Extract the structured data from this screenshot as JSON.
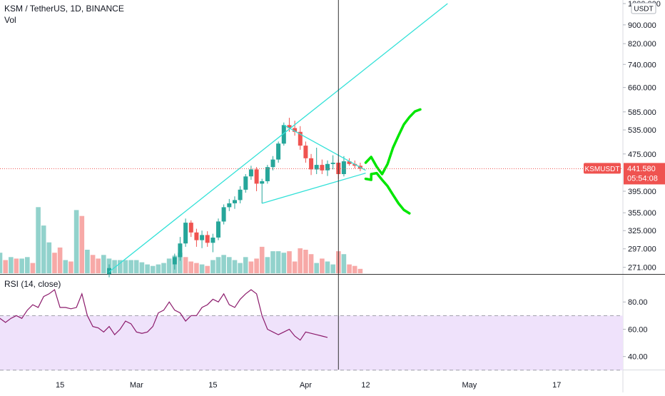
{
  "header": {
    "symbol_title": "KSM / TetherUS, 1D, BINANCE",
    "volume_label": "Vol",
    "currency_badge": "USDT"
  },
  "price_axis": {
    "ticks": [
      "1000.000",
      "900.000",
      "820.000",
      "740.000",
      "660.000",
      "585.000",
      "535.000",
      "475.000",
      "395.000",
      "355.000",
      "325.000",
      "297.000",
      "271.000"
    ]
  },
  "last_price": {
    "symbol": "KSMUSDT",
    "price": "441.580",
    "countdown": "05:54:08",
    "value": 441.58
  },
  "rsi": {
    "label": "RSI (14, close)",
    "ticks": [
      "80.00",
      "60.00",
      "40.00"
    ],
    "band_upper": 70,
    "band_lower": 30
  },
  "time_axis": {
    "ticks": [
      "15",
      "Mar",
      "15",
      "Apr",
      "12",
      "May",
      "17"
    ]
  },
  "colors": {
    "up": "#26a69a",
    "down": "#ef5350",
    "trendline": "#33e1d8",
    "drawing": "#00e600",
    "rsi_line": "#8b1a6b",
    "rsi_band": "#efe2fb",
    "crosshair": "#333333"
  },
  "chart_data": {
    "type": "candlestick",
    "title": "KSM / TetherUS, 1D, BINANCE",
    "price_scale": "log",
    "price_range": [
      265,
      1000
    ],
    "candles": [
      {
        "date": "2021-02-24",
        "o": 262,
        "h": 275,
        "l": 258,
        "c": 270
      },
      {
        "date": "2021-03-08",
        "o": 275,
        "h": 290,
        "l": 268,
        "c": 285
      },
      {
        "date": "2021-03-09",
        "o": 285,
        "h": 315,
        "l": 280,
        "c": 305
      },
      {
        "date": "2021-03-10",
        "o": 305,
        "h": 345,
        "l": 300,
        "c": 338
      },
      {
        "date": "2021-03-11",
        "o": 338,
        "h": 342,
        "l": 315,
        "c": 322
      },
      {
        "date": "2021-03-12",
        "o": 322,
        "h": 328,
        "l": 300,
        "c": 310
      },
      {
        "date": "2021-03-13",
        "o": 310,
        "h": 325,
        "l": 298,
        "c": 318
      },
      {
        "date": "2021-03-14",
        "o": 318,
        "h": 324,
        "l": 300,
        "c": 306
      },
      {
        "date": "2021-03-15",
        "o": 306,
        "h": 320,
        "l": 292,
        "c": 314
      },
      {
        "date": "2021-03-16",
        "o": 314,
        "h": 345,
        "l": 310,
        "c": 340
      },
      {
        "date": "2021-03-17",
        "o": 340,
        "h": 370,
        "l": 335,
        "c": 365
      },
      {
        "date": "2021-03-18",
        "o": 365,
        "h": 380,
        "l": 358,
        "c": 372
      },
      {
        "date": "2021-03-19",
        "o": 372,
        "h": 385,
        "l": 362,
        "c": 378
      },
      {
        "date": "2021-03-20",
        "o": 378,
        "h": 405,
        "l": 372,
        "c": 398
      },
      {
        "date": "2021-03-21",
        "o": 398,
        "h": 430,
        "l": 392,
        "c": 425
      },
      {
        "date": "2021-03-22",
        "o": 425,
        "h": 448,
        "l": 418,
        "c": 440
      },
      {
        "date": "2021-03-23",
        "o": 440,
        "h": 445,
        "l": 395,
        "c": 410
      },
      {
        "date": "2021-03-24",
        "o": 410,
        "h": 420,
        "l": 372,
        "c": 415
      },
      {
        "date": "2021-03-25",
        "o": 415,
        "h": 450,
        "l": 410,
        "c": 445
      },
      {
        "date": "2021-03-26",
        "o": 445,
        "h": 470,
        "l": 438,
        "c": 462
      },
      {
        "date": "2021-03-27",
        "o": 462,
        "h": 505,
        "l": 455,
        "c": 500
      },
      {
        "date": "2021-03-28",
        "o": 500,
        "h": 555,
        "l": 495,
        "c": 548
      },
      {
        "date": "2021-03-29",
        "o": 548,
        "h": 568,
        "l": 530,
        "c": 540
      },
      {
        "date": "2021-03-30",
        "o": 540,
        "h": 560,
        "l": 520,
        "c": 530
      },
      {
        "date": "2021-03-31",
        "o": 530,
        "h": 545,
        "l": 485,
        "c": 495
      },
      {
        "date": "2021-04-01",
        "o": 495,
        "h": 505,
        "l": 455,
        "c": 465
      },
      {
        "date": "2021-04-02",
        "o": 465,
        "h": 475,
        "l": 428,
        "c": 440
      },
      {
        "date": "2021-04-03",
        "o": 440,
        "h": 490,
        "l": 430,
        "c": 450
      },
      {
        "date": "2021-04-04",
        "o": 450,
        "h": 462,
        "l": 430,
        "c": 438
      },
      {
        "date": "2021-04-05",
        "o": 438,
        "h": 460,
        "l": 426,
        "c": 452
      },
      {
        "date": "2021-04-06",
        "o": 452,
        "h": 472,
        "l": 440,
        "c": 455
      },
      {
        "date": "2021-04-07",
        "o": 455,
        "h": 462,
        "l": 420,
        "c": 430
      },
      {
        "date": "2021-04-08",
        "o": 430,
        "h": 470,
        "l": 425,
        "c": 458
      },
      {
        "date": "2021-04-09",
        "o": 458,
        "h": 465,
        "l": 448,
        "c": 452
      },
      {
        "date": "2021-04-10",
        "o": 452,
        "h": 460,
        "l": 442,
        "c": 448
      },
      {
        "date": "2021-04-11",
        "o": 448,
        "h": 455,
        "l": 436,
        "c": 441.58
      }
    ],
    "volume": [
      {
        "date": "2021-01-31",
        "v": 30,
        "up": false
      },
      {
        "date": "2021-02-01",
        "v": 30,
        "up": false
      },
      {
        "date": "2021-02-02",
        "v": 22,
        "up": true
      },
      {
        "date": "2021-02-03",
        "v": 20,
        "up": false
      },
      {
        "date": "2021-02-04",
        "v": 28,
        "up": true
      },
      {
        "date": "2021-02-05",
        "v": 18,
        "up": false
      },
      {
        "date": "2021-02-06",
        "v": 22,
        "up": true
      },
      {
        "date": "2021-02-07",
        "v": 20,
        "up": false
      },
      {
        "date": "2021-02-08",
        "v": 20,
        "up": true
      },
      {
        "date": "2021-02-09",
        "v": 22,
        "up": true
      },
      {
        "date": "2021-02-10",
        "v": 14,
        "up": false
      },
      {
        "date": "2021-02-11",
        "v": 90,
        "up": true
      },
      {
        "date": "2021-02-12",
        "v": 65,
        "up": true
      },
      {
        "date": "2021-02-13",
        "v": 42,
        "up": true
      },
      {
        "date": "2021-02-14",
        "v": 28,
        "up": false
      },
      {
        "date": "2021-02-15",
        "v": 35,
        "up": false
      },
      {
        "date": "2021-02-16",
        "v": 18,
        "up": true
      },
      {
        "date": "2021-02-17",
        "v": 16,
        "up": false
      },
      {
        "date": "2021-02-18",
        "v": 86,
        "up": true
      },
      {
        "date": "2021-02-19",
        "v": 78,
        "up": false
      },
      {
        "date": "2021-02-20",
        "v": 32,
        "up": true
      },
      {
        "date": "2021-02-21",
        "v": 25,
        "up": false
      },
      {
        "date": "2021-02-22",
        "v": 20,
        "up": false
      },
      {
        "date": "2021-02-23",
        "v": 25,
        "up": true
      },
      {
        "date": "2021-02-24",
        "v": 20,
        "up": true
      },
      {
        "date": "2021-02-25",
        "v": 18,
        "up": true
      },
      {
        "date": "2021-02-26",
        "v": 18,
        "up": true
      },
      {
        "date": "2021-02-27",
        "v": 18,
        "up": true
      },
      {
        "date": "2021-02-28",
        "v": 18,
        "up": true
      },
      {
        "date": "2021-03-01",
        "v": 18,
        "up": true
      },
      {
        "date": "2021-03-02",
        "v": 15,
        "up": true
      },
      {
        "date": "2021-03-03",
        "v": 12,
        "up": true
      },
      {
        "date": "2021-03-04",
        "v": 10,
        "up": true
      },
      {
        "date": "2021-03-05",
        "v": 12,
        "up": true
      },
      {
        "date": "2021-03-06",
        "v": 14,
        "up": true
      },
      {
        "date": "2021-03-07",
        "v": 20,
        "up": true
      },
      {
        "date": "2021-03-08",
        "v": 24,
        "up": true
      },
      {
        "date": "2021-03-09",
        "v": 28,
        "up": true
      },
      {
        "date": "2021-03-10",
        "v": 22,
        "up": false
      },
      {
        "date": "2021-03-11",
        "v": 16,
        "up": false
      },
      {
        "date": "2021-03-12",
        "v": 14,
        "up": false
      },
      {
        "date": "2021-03-13",
        "v": 12,
        "up": true
      },
      {
        "date": "2021-03-14",
        "v": 10,
        "up": false
      },
      {
        "date": "2021-03-15",
        "v": 18,
        "up": true
      },
      {
        "date": "2021-03-16",
        "v": 22,
        "up": true
      },
      {
        "date": "2021-03-17",
        "v": 25,
        "up": true
      },
      {
        "date": "2021-03-18",
        "v": 22,
        "up": true
      },
      {
        "date": "2021-03-19",
        "v": 18,
        "up": true
      },
      {
        "date": "2021-03-20",
        "v": 14,
        "up": true
      },
      {
        "date": "2021-03-21",
        "v": 22,
        "up": true
      },
      {
        "date": "2021-03-22",
        "v": 16,
        "up": false
      },
      {
        "date": "2021-03-23",
        "v": 20,
        "up": false
      },
      {
        "date": "2021-03-24",
        "v": 36,
        "up": false
      },
      {
        "date": "2021-03-25",
        "v": 22,
        "up": true
      },
      {
        "date": "2021-03-26",
        "v": 30,
        "up": true
      },
      {
        "date": "2021-03-27",
        "v": 30,
        "up": true
      },
      {
        "date": "2021-03-28",
        "v": 28,
        "up": true
      },
      {
        "date": "2021-03-29",
        "v": 30,
        "up": false
      },
      {
        "date": "2021-03-30",
        "v": 16,
        "up": false
      },
      {
        "date": "2021-03-31",
        "v": 34,
        "up": false
      },
      {
        "date": "2021-04-01",
        "v": 32,
        "up": false
      },
      {
        "date": "2021-04-02",
        "v": 26,
        "up": false
      },
      {
        "date": "2021-04-03",
        "v": 14,
        "up": true
      },
      {
        "date": "2021-04-04",
        "v": 20,
        "up": false
      },
      {
        "date": "2021-04-05",
        "v": 16,
        "up": true
      },
      {
        "date": "2021-04-06",
        "v": 12,
        "up": true
      },
      {
        "date": "2021-04-07",
        "v": 30,
        "up": false
      },
      {
        "date": "2021-04-08",
        "v": 26,
        "up": true
      },
      {
        "date": "2021-04-09",
        "v": 12,
        "up": false
      },
      {
        "date": "2021-04-10",
        "v": 10,
        "up": false
      },
      {
        "date": "2021-04-11",
        "v": 6,
        "up": false
      }
    ],
    "rsi_series": [
      {
        "date": "2021-01-31",
        "v": 62
      },
      {
        "date": "2021-02-01",
        "v": 65
      },
      {
        "date": "2021-02-02",
        "v": 58
      },
      {
        "date": "2021-02-03",
        "v": 60
      },
      {
        "date": "2021-02-04",
        "v": 68
      },
      {
        "date": "2021-02-05",
        "v": 65
      },
      {
        "date": "2021-02-06",
        "v": 68
      },
      {
        "date": "2021-02-07",
        "v": 70
      },
      {
        "date": "2021-02-08",
        "v": 68
      },
      {
        "date": "2021-02-09",
        "v": 74
      },
      {
        "date": "2021-02-10",
        "v": 78
      },
      {
        "date": "2021-02-11",
        "v": 76
      },
      {
        "date": "2021-02-12",
        "v": 84
      },
      {
        "date": "2021-02-13",
        "v": 86
      },
      {
        "date": "2021-02-14",
        "v": 89
      },
      {
        "date": "2021-02-15",
        "v": 76
      },
      {
        "date": "2021-02-16",
        "v": 76
      },
      {
        "date": "2021-02-17",
        "v": 75
      },
      {
        "date": "2021-02-18",
        "v": 76
      },
      {
        "date": "2021-02-19",
        "v": 86
      },
      {
        "date": "2021-02-20",
        "v": 70
      },
      {
        "date": "2021-02-21",
        "v": 62
      },
      {
        "date": "2021-02-22",
        "v": 61
      },
      {
        "date": "2021-02-23",
        "v": 58
      },
      {
        "date": "2021-02-24",
        "v": 62
      },
      {
        "date": "2021-02-25",
        "v": 56
      },
      {
        "date": "2021-02-26",
        "v": 60
      },
      {
        "date": "2021-02-27",
        "v": 66
      },
      {
        "date": "2021-02-28",
        "v": 64
      },
      {
        "date": "2021-03-01",
        "v": 58
      },
      {
        "date": "2021-03-02",
        "v": 57
      },
      {
        "date": "2021-03-03",
        "v": 58
      },
      {
        "date": "2021-03-04",
        "v": 62
      },
      {
        "date": "2021-03-05",
        "v": 72
      },
      {
        "date": "2021-03-06",
        "v": 74
      },
      {
        "date": "2021-03-07",
        "v": 80
      },
      {
        "date": "2021-03-08",
        "v": 74
      },
      {
        "date": "2021-03-09",
        "v": 72
      },
      {
        "date": "2021-03-10",
        "v": 66
      },
      {
        "date": "2021-03-11",
        "v": 70
      },
      {
        "date": "2021-03-12",
        "v": 70
      },
      {
        "date": "2021-03-13",
        "v": 76
      },
      {
        "date": "2021-03-14",
        "v": 78
      },
      {
        "date": "2021-03-15",
        "v": 82
      },
      {
        "date": "2021-03-16",
        "v": 80
      },
      {
        "date": "2021-03-17",
        "v": 86
      },
      {
        "date": "2021-03-18",
        "v": 78
      },
      {
        "date": "2021-03-19",
        "v": 76
      },
      {
        "date": "2021-03-20",
        "v": 82
      },
      {
        "date": "2021-03-21",
        "v": 86
      },
      {
        "date": "2021-03-22",
        "v": 89
      },
      {
        "date": "2021-03-23",
        "v": 86
      },
      {
        "date": "2021-03-24",
        "v": 70
      },
      {
        "date": "2021-03-25",
        "v": 60
      },
      {
        "date": "2021-03-26",
        "v": 58
      },
      {
        "date": "2021-03-27",
        "v": 56
      },
      {
        "date": "2021-03-28",
        "v": 58
      },
      {
        "date": "2021-03-29",
        "v": 60
      },
      {
        "date": "2021-03-30",
        "v": 55
      },
      {
        "date": "2021-03-31",
        "v": 52
      },
      {
        "date": "2021-04-01",
        "v": 58
      },
      {
        "date": "2021-04-02",
        "v": 57
      },
      {
        "date": "2021-04-03",
        "v": 56
      },
      {
        "date": "2021-04-04",
        "v": 55
      },
      {
        "date": "2021-04-05",
        "v": 54
      }
    ],
    "rsi_range": [
      21,
      100
    ],
    "rsi_ticks": [
      80,
      60,
      40
    ],
    "time_ticks": [
      {
        "label": "15",
        "date": "2021-02-15"
      },
      {
        "label": "Mar",
        "date": "2021-03-01"
      },
      {
        "label": "15",
        "date": "2021-03-15"
      },
      {
        "label": "Apr",
        "date": "2021-04-01"
      },
      {
        "label": "12",
        "date": "2021-04-12"
      },
      {
        "label": "May",
        "date": "2021-05-01"
      },
      {
        "label": "17",
        "date": "2021-05-17"
      }
    ],
    "drawings": [
      {
        "name": "rising-trendline",
        "kind": "line",
        "from": {
          "date": "2021-02-24",
          "price": 265
        },
        "to": {
          "date": "2021-04-27",
          "price": 1000
        }
      },
      {
        "name": "triangle-upper-line",
        "kind": "line",
        "from": {
          "date": "2021-03-28",
          "price": 548
        },
        "to": {
          "date": "2021-04-12",
          "price": 438
        }
      },
      {
        "name": "triangle-lower-line",
        "kind": "line",
        "from": {
          "date": "2021-03-24",
          "price": 372
        },
        "to": {
          "date": "2021-04-12",
          "price": 432
        }
      },
      {
        "name": "bullish-path",
        "kind": "freehand",
        "points": [
          {
            "date": "2021-04-12",
            "price": 455
          },
          {
            "date": "2021-04-13",
            "price": 468
          },
          {
            "date": "2021-04-14",
            "price": 446
          },
          {
            "date": "2021-04-15",
            "price": 430
          },
          {
            "date": "2021-04-16",
            "price": 452
          },
          {
            "date": "2021-04-17",
            "price": 490
          },
          {
            "date": "2021-04-18",
            "price": 520
          },
          {
            "date": "2021-04-19",
            "price": 550
          },
          {
            "date": "2021-04-20",
            "price": 570
          },
          {
            "date": "2021-04-21",
            "price": 586
          },
          {
            "date": "2021-04-22",
            "price": 592
          }
        ]
      },
      {
        "name": "bearish-path",
        "kind": "freehand",
        "points": [
          {
            "date": "2021-04-12",
            "price": 420
          },
          {
            "date": "2021-04-13",
            "price": 418
          },
          {
            "date": "2021-04-13",
            "price": 430
          },
          {
            "date": "2021-04-14",
            "price": 432
          },
          {
            "date": "2021-04-15",
            "price": 418
          },
          {
            "date": "2021-04-16",
            "price": 405
          },
          {
            "date": "2021-04-17",
            "price": 388
          },
          {
            "date": "2021-04-18",
            "price": 372
          },
          {
            "date": "2021-04-19",
            "price": 360
          },
          {
            "date": "2021-04-20",
            "price": 354
          }
        ]
      }
    ],
    "crosshair_date": "2021-04-07"
  }
}
